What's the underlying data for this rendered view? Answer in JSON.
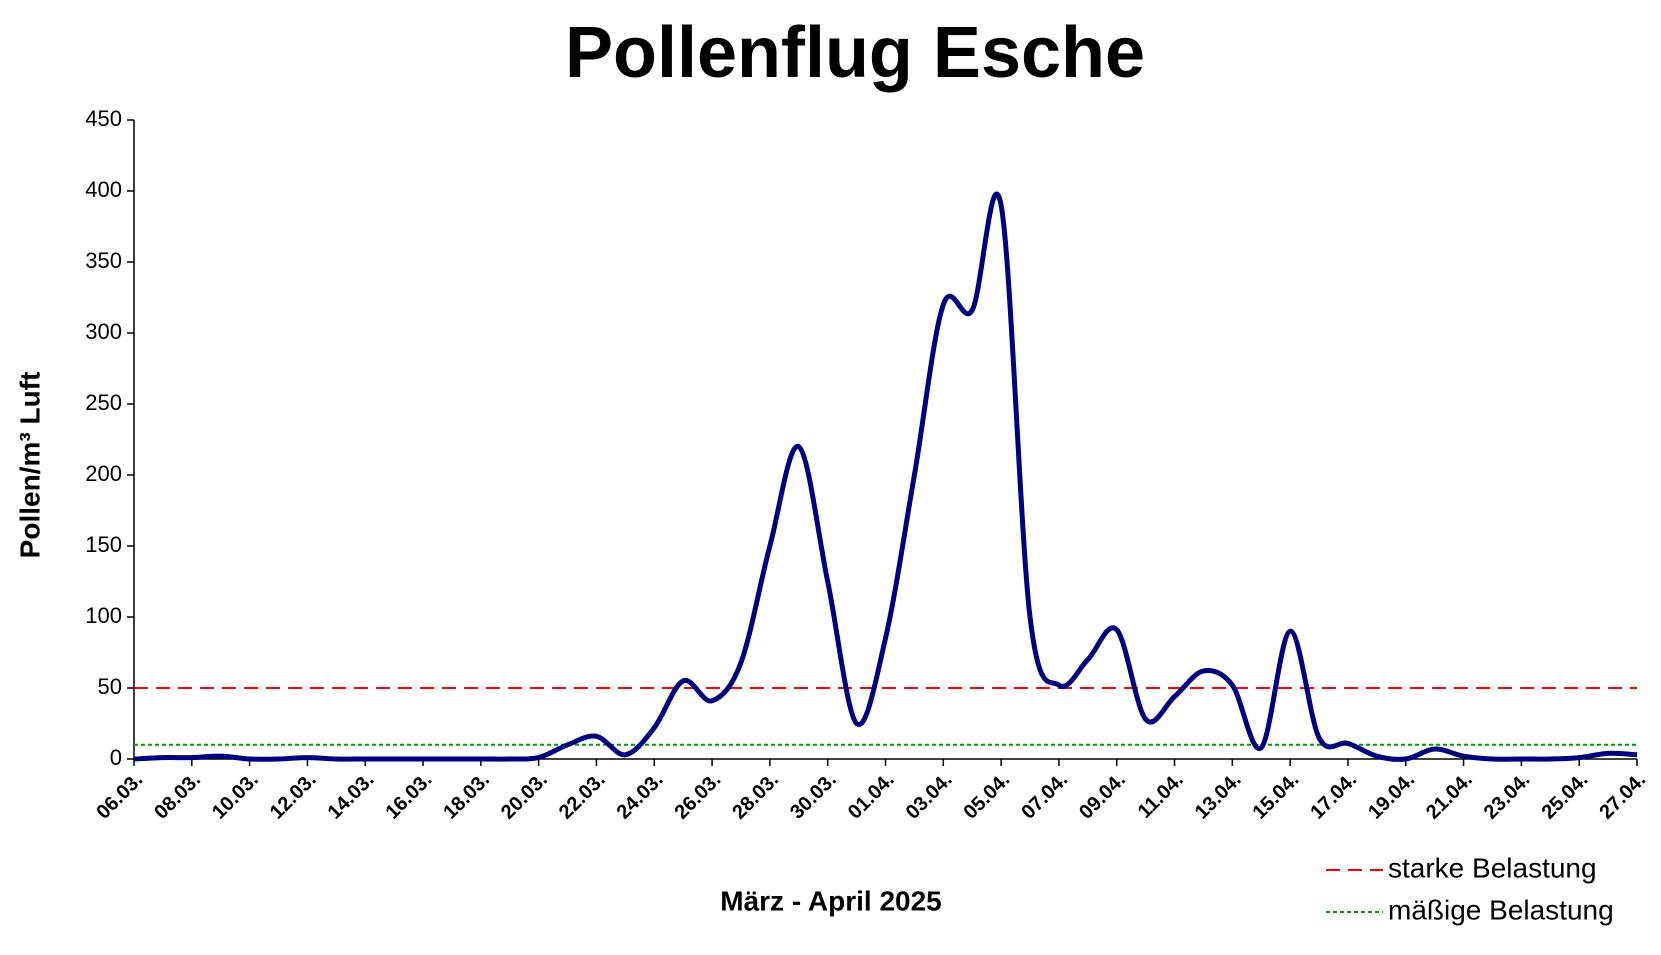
{
  "chart_data": {
    "type": "line",
    "title": "Pollenflug Esche",
    "x_label": "März - April 2025",
    "y_label": "Pollen/m³ Luft",
    "categories": [
      "06.03.",
      null,
      "08.03.",
      null,
      "10.03.",
      null,
      "12.03.",
      null,
      "14.03.",
      null,
      "16.03.",
      null,
      "18.03.",
      null,
      "20.03.",
      null,
      "22.03.",
      null,
      "24.03.",
      null,
      "26.03.",
      null,
      "28.03.",
      null,
      "30.03.",
      null,
      "01.04.",
      null,
      "03.04.",
      null,
      "05.04.",
      null,
      "07.04.",
      null,
      "09.04.",
      null,
      "11.04.",
      null,
      "13.04.",
      null,
      "15.04.",
      null,
      "17.04.",
      null,
      "19.04.",
      null,
      "21.04.",
      null,
      "23.04.",
      null,
      "25.04.",
      null,
      "27.04."
    ],
    "series": [
      {
        "name": "Esche",
        "color": "#000080",
        "values": [
          0,
          1,
          1,
          2,
          0,
          0,
          1,
          0,
          0,
          0,
          0,
          0,
          0,
          0,
          1,
          10,
          16,
          3,
          22,
          55,
          41,
          68,
          150,
          220,
          125,
          25,
          85,
          200,
          320,
          316,
          390,
          100,
          52,
          70,
          91,
          28,
          44,
          62,
          52,
          8,
          90,
          15,
          11,
          2,
          0,
          7,
          2,
          0,
          0,
          0,
          1,
          4,
          3
        ]
      }
    ],
    "thresholds": [
      {
        "name": "starke Belastung",
        "value": 50,
        "color": "#ff0000",
        "style": "dashed"
      },
      {
        "name": "mäßige Belastung",
        "value": 10,
        "color": "#009900",
        "style": "dotted"
      }
    ],
    "ylim": [
      0,
      450
    ],
    "yticks": [
      0,
      50,
      100,
      150,
      200,
      250,
      300,
      350,
      400,
      450
    ],
    "grid": false
  }
}
